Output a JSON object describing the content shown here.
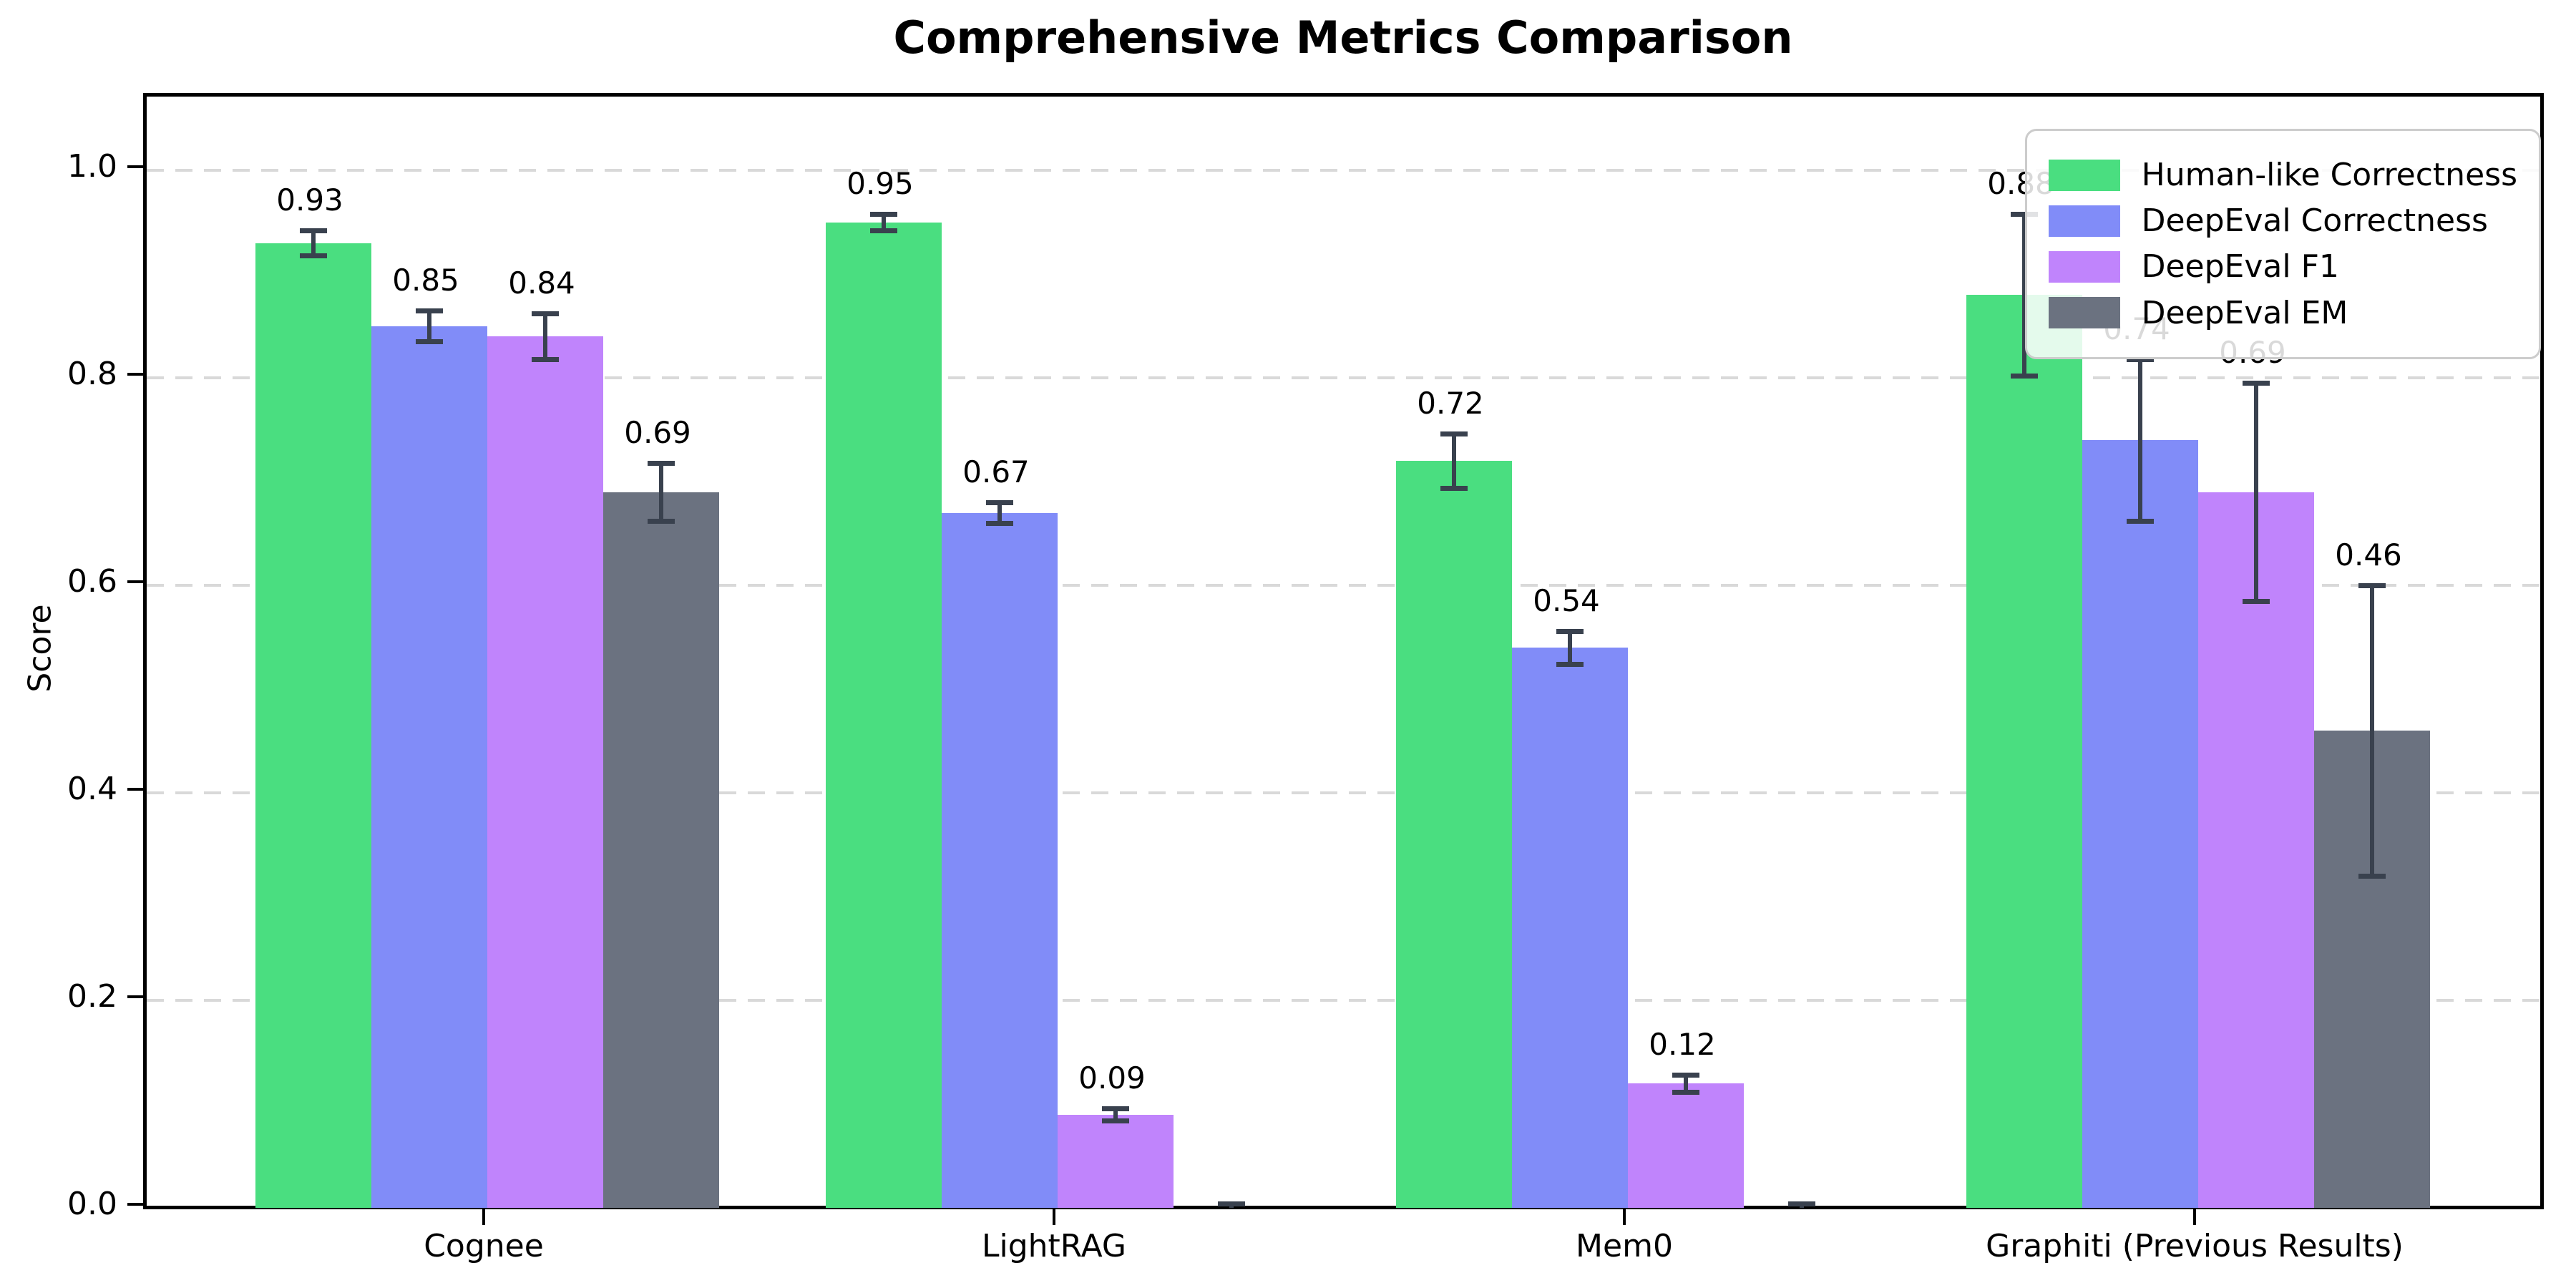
{
  "page": {
    "title": "Comprehensive Metrics Comparison"
  },
  "chart_data": {
    "type": "bar",
    "title": "Comprehensive Metrics Comparison",
    "xlabel": "",
    "ylabel": "Score",
    "categories": [
      "Cognee",
      "LightRAG",
      "Mem0",
      "Graphiti (Previous Results)"
    ],
    "series": [
      {
        "name": "Human-like Correctness",
        "color": "#4ade80",
        "values": [
          0.93,
          0.95,
          0.72,
          0.88
        ],
        "errors": [
          0.012,
          0.008,
          0.026,
          0.078
        ],
        "value_labels": [
          "0.93",
          "0.95",
          "0.72",
          "0.88"
        ]
      },
      {
        "name": "DeepEval Correctness",
        "color": "#818cf8",
        "values": [
          0.85,
          0.67,
          0.54,
          0.74
        ],
        "errors": [
          0.015,
          0.01,
          0.016,
          0.078
        ],
        "value_labels": [
          "0.85",
          "0.67",
          "0.54",
          "0.74"
        ]
      },
      {
        "name": "DeepEval F1",
        "color": "#c084fc",
        "values": [
          0.84,
          0.09,
          0.12,
          0.69
        ],
        "errors": [
          0.022,
          0.006,
          0.008,
          0.105
        ],
        "value_labels": [
          "0.84",
          "0.09",
          "0.12",
          "0.69"
        ]
      },
      {
        "name": "DeepEval EM",
        "color": "#6b7280",
        "values": [
          0.69,
          0.0,
          0.0,
          0.46
        ],
        "errors": [
          0.028,
          0.004,
          0.004,
          0.14
        ],
        "value_labels": [
          "0.69",
          "",
          "",
          "0.46"
        ]
      }
    ],
    "yticks": [
      "0.0",
      "0.2",
      "0.4",
      "0.6",
      "0.8",
      "1.0"
    ],
    "ylim": [
      0.0,
      1.07
    ],
    "grid": "horizontal-dashed",
    "legend_position": "upper right",
    "error_bar_color": "#39414e",
    "background_color": "#ffffff"
  }
}
